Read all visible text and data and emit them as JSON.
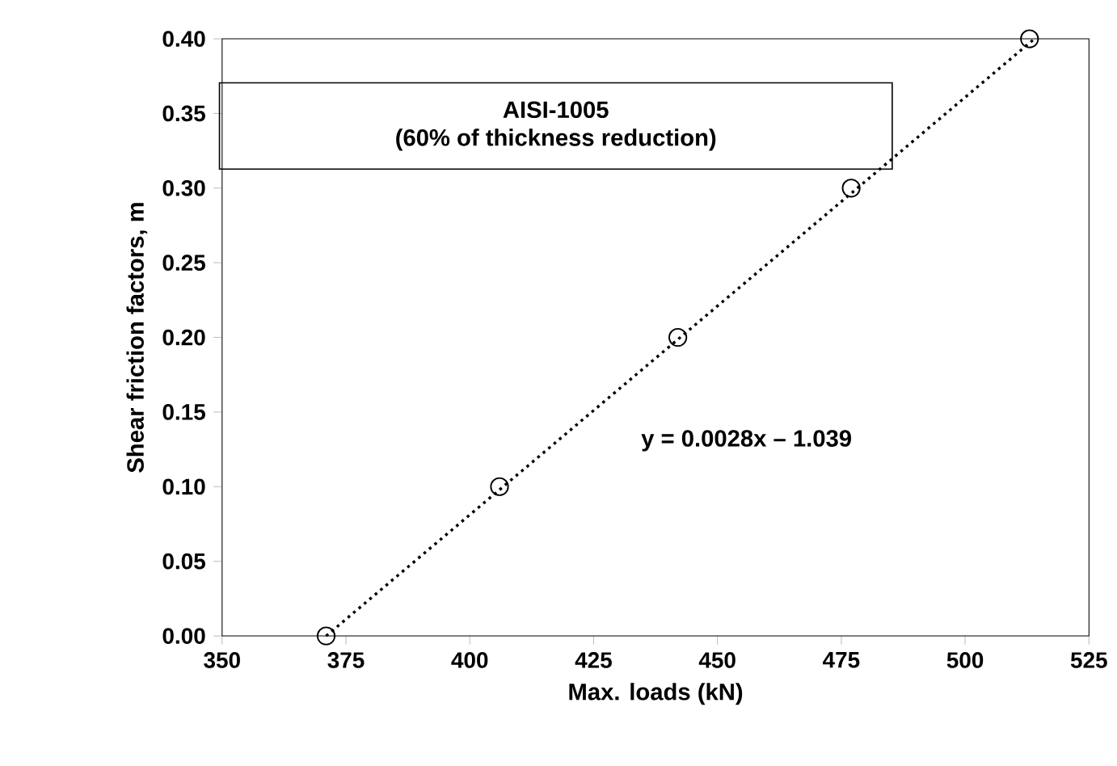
{
  "chart_data": {
    "type": "scatter",
    "xlabel": "Max. loads (kN)",
    "ylabel": "Shear friction factors, m",
    "xlim": [
      350,
      525
    ],
    "xticks": [
      350,
      375,
      400,
      425,
      450,
      475,
      500,
      525
    ],
    "ylim": [
      0,
      0.4
    ],
    "yticks": [
      {
        "value": 0,
        "label": "0.00"
      },
      {
        "value": 0.05,
        "label": "0.05"
      },
      {
        "value": 0.1,
        "label": "0.10"
      },
      {
        "value": 0.15,
        "label": "0.15"
      },
      {
        "value": 0.2,
        "label": "0.20"
      },
      {
        "value": 0.25,
        "label": "0.25"
      },
      {
        "value": 0.3,
        "label": "0.30"
      },
      {
        "value": 0.35,
        "label": "0.35"
      },
      {
        "value": 0.4,
        "label": "0.40"
      }
    ],
    "grid": false,
    "series": [
      {
        "type": "line",
        "color": "#000000",
        "line_style": "dotted",
        "marker": "none",
        "x": [
          371,
          514
        ],
        "values": [
          0,
          0.4
        ]
      },
      {
        "color": "#000000",
        "marker": "circle",
        "x": [
          371,
          406,
          442,
          477,
          513
        ],
        "values": [
          0,
          0.1,
          0.2,
          0.3,
          0.4
        ]
      }
    ],
    "annotations": [
      "AISI-1005",
      "(60% of thickness reduction)",
      "y = 0.0028x – 1.039"
    ]
  }
}
